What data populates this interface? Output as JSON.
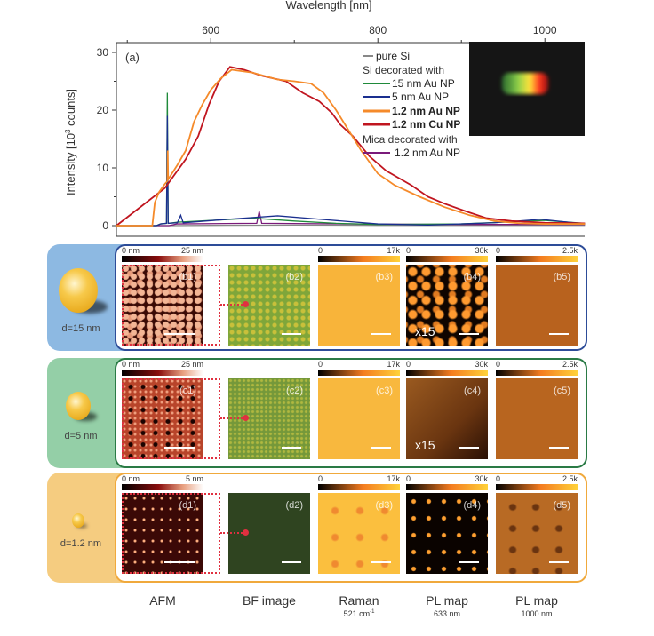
{
  "chart_data": {
    "type": "line",
    "panel_label": "(a)",
    "xlabel": "Wavelength [nm]",
    "ylabel": "Intensity [10",
    "ylabel_sup": "3",
    "ylabel_end": " counts]",
    "xlim": [
      487,
      1048
    ],
    "ylim": [
      0,
      31
    ],
    "xticks": [
      600,
      800,
      1000
    ],
    "xminor": [
      500,
      700,
      900
    ],
    "yticks": [
      0,
      10,
      20,
      30
    ],
    "yminor": [
      5,
      15,
      25
    ],
    "legend": {
      "placement": "top-right",
      "header1": "Si decorated with",
      "header2": "Mica decorated with"
    },
    "series": [
      {
        "name": "pure Si",
        "color": "#888888",
        "bold": false,
        "points": [
          [
            487,
            0
          ],
          [
            550,
            0
          ],
          [
            600,
            0.05
          ],
          [
            700,
            0.1
          ],
          [
            800,
            0.05
          ],
          [
            900,
            0.05
          ],
          [
            1048,
            0.05
          ]
        ]
      },
      {
        "name": "15 nm Au NP",
        "color": "#1f8a3a",
        "bold": false,
        "points": [
          [
            487,
            0
          ],
          [
            535,
            0
          ],
          [
            540,
            0.3
          ],
          [
            547,
            0.4
          ],
          [
            548,
            23
          ],
          [
            549,
            0.4
          ],
          [
            560,
            0.6
          ],
          [
            600,
            0.9
          ],
          [
            650,
            1.3
          ],
          [
            700,
            0.8
          ],
          [
            750,
            0.4
          ],
          [
            800,
            0.2
          ],
          [
            900,
            0.3
          ],
          [
            1000,
            0.9
          ],
          [
            1048,
            0.4
          ]
        ]
      },
      {
        "name": "5 nm Au NP",
        "color": "#1a2f8f",
        "bold": false,
        "points": [
          [
            487,
            0
          ],
          [
            535,
            0
          ],
          [
            540,
            0.3
          ],
          [
            547,
            0.4
          ],
          [
            548,
            19
          ],
          [
            549,
            0.4
          ],
          [
            560,
            0.5
          ],
          [
            564,
            1.8
          ],
          [
            567,
            0.5
          ],
          [
            620,
            1.1
          ],
          [
            680,
            1.7
          ],
          [
            740,
            1.0
          ],
          [
            800,
            0.3
          ],
          [
            860,
            0.1
          ],
          [
            940,
            0.5
          ],
          [
            995,
            1.1
          ],
          [
            1048,
            0.3
          ]
        ]
      },
      {
        "name": "1.2 nm Au NP",
        "color": "#f58a2a",
        "bold": true,
        "points": [
          [
            487,
            0
          ],
          [
            530,
            0
          ],
          [
            533,
            4
          ],
          [
            538,
            5.8
          ],
          [
            545,
            7.2
          ],
          [
            548,
            7.7
          ],
          [
            548.5,
            13
          ],
          [
            549,
            8
          ],
          [
            560,
            10.5
          ],
          [
            570,
            13
          ],
          [
            580,
            18
          ],
          [
            590,
            21
          ],
          [
            600,
            23.5
          ],
          [
            612,
            25.5
          ],
          [
            625,
            27
          ],
          [
            650,
            26.5
          ],
          [
            680,
            25.3
          ],
          [
            700,
            25
          ],
          [
            720,
            24.6
          ],
          [
            735,
            23
          ],
          [
            750,
            20
          ],
          [
            765,
            16.5
          ],
          [
            780,
            13
          ],
          [
            800,
            9
          ],
          [
            820,
            7
          ],
          [
            850,
            5
          ],
          [
            880,
            3.2
          ],
          [
            910,
            1.8
          ],
          [
            940,
            0.8
          ],
          [
            970,
            0.4
          ],
          [
            1000,
            0.3
          ],
          [
            1048,
            0.3
          ]
        ]
      },
      {
        "name": "1.2 nm Cu NP",
        "color": "#c0151f",
        "bold": true,
        "points": [
          [
            487,
            0
          ],
          [
            545,
            6.5
          ],
          [
            555,
            8.5
          ],
          [
            570,
            11.5
          ],
          [
            585,
            15.5
          ],
          [
            598,
            21
          ],
          [
            610,
            25
          ],
          [
            623,
            27.5
          ],
          [
            640,
            27
          ],
          [
            660,
            26
          ],
          [
            690,
            25
          ],
          [
            710,
            23
          ],
          [
            730,
            21.5
          ],
          [
            745,
            19.5
          ],
          [
            755,
            17.5
          ],
          [
            770,
            15.5
          ],
          [
            790,
            12
          ],
          [
            810,
            9.5
          ],
          [
            840,
            7
          ],
          [
            860,
            5
          ],
          [
            880,
            3.8
          ],
          [
            905,
            2.5
          ],
          [
            930,
            1.3
          ],
          [
            960,
            0.8
          ],
          [
            1000,
            0.5
          ],
          [
            1048,
            0.4
          ]
        ]
      },
      {
        "name": "1.2 nm Au NP",
        "color": "#7a1a7a",
        "bold": false,
        "points": [
          [
            487,
            0
          ],
          [
            550,
            0
          ],
          [
            560,
            0.3
          ],
          [
            655,
            0.4
          ],
          [
            658,
            2.5
          ],
          [
            661,
            0.4
          ],
          [
            760,
            0.3
          ],
          [
            900,
            0.2
          ],
          [
            1048,
            0.2
          ]
        ]
      }
    ]
  },
  "rows": [
    {
      "label": "d=15 nm",
      "color": "#8db9e2",
      "border": "#2d4c98",
      "panels": [
        "(b1)",
        "(b2)",
        "(b3)",
        "(b4)",
        "(b5)"
      ],
      "afm_max": "25 nm",
      "pl633_note": "x15"
    },
    {
      "label": "d=5 nm",
      "color": "#94cfa7",
      "border": "#2a7a45",
      "panels": [
        "(c1)",
        "(c2)",
        "(c3)",
        "(c4)",
        "(c5)"
      ],
      "afm_max": "25 nm",
      "pl633_note": "x15"
    },
    {
      "label": "d=1.2 nm",
      "color": "#f5cc80",
      "border": "#f0a93c",
      "panels": [
        "(d1)",
        "(d2)",
        "(d3)",
        "(d4)",
        "(d5)"
      ],
      "afm_max": "5 nm",
      "pl633_note": ""
    }
  ],
  "colorbars": {
    "afm_min": "0 nm",
    "raman": [
      "0",
      "17k"
    ],
    "pl633": [
      "0",
      "30k"
    ],
    "pl1000": [
      "0",
      "2.5k"
    ]
  },
  "columns": [
    {
      "label": "AFM",
      "sub": ""
    },
    {
      "label": "BF image",
      "sub": ""
    },
    {
      "label": "Raman",
      "sub": "521 cm",
      "sub_sup": "-1"
    },
    {
      "label": "PL map",
      "sub": "633 nm"
    },
    {
      "label": "PL map",
      "sub": "1000 nm"
    }
  ]
}
